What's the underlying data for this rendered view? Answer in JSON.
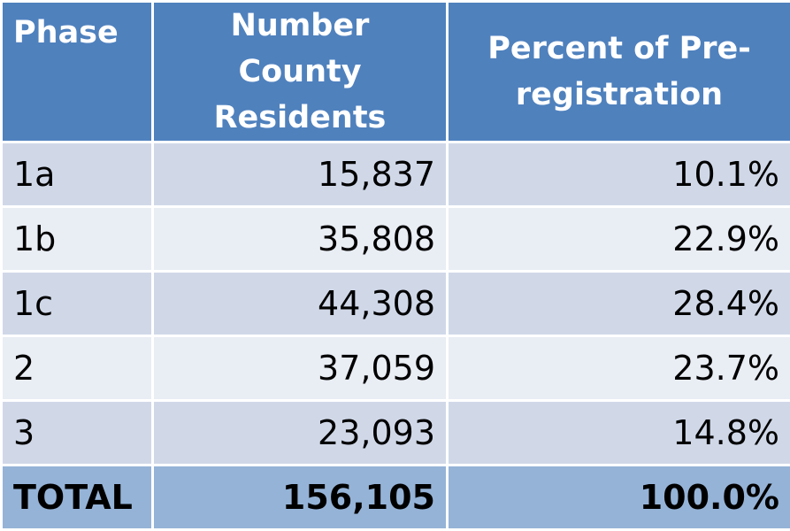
{
  "header": {
    "phase": "Phase",
    "residents": "Number County Residents",
    "percent": "Percent of Pre-registration"
  },
  "rows": [
    {
      "phase": "1a",
      "residents": "15,837",
      "percent": "10.1%"
    },
    {
      "phase": "1b",
      "residents": "35,808",
      "percent": "22.9%"
    },
    {
      "phase": "1c",
      "residents": "44,308",
      "percent": "28.4%"
    },
    {
      "phase": "2",
      "residents": "37,059",
      "percent": "23.7%"
    },
    {
      "phase": "3",
      "residents": "23,093",
      "percent": "14.8%"
    }
  ],
  "total": {
    "phase": "TOTAL",
    "residents": "156,105",
    "percent": "100.0%"
  },
  "colors": {
    "header_bg": "#4f81bd",
    "row_odd_bg": "#d0d8e8",
    "row_even_bg": "#e9edf4",
    "total_bg": "#95b3d7"
  }
}
